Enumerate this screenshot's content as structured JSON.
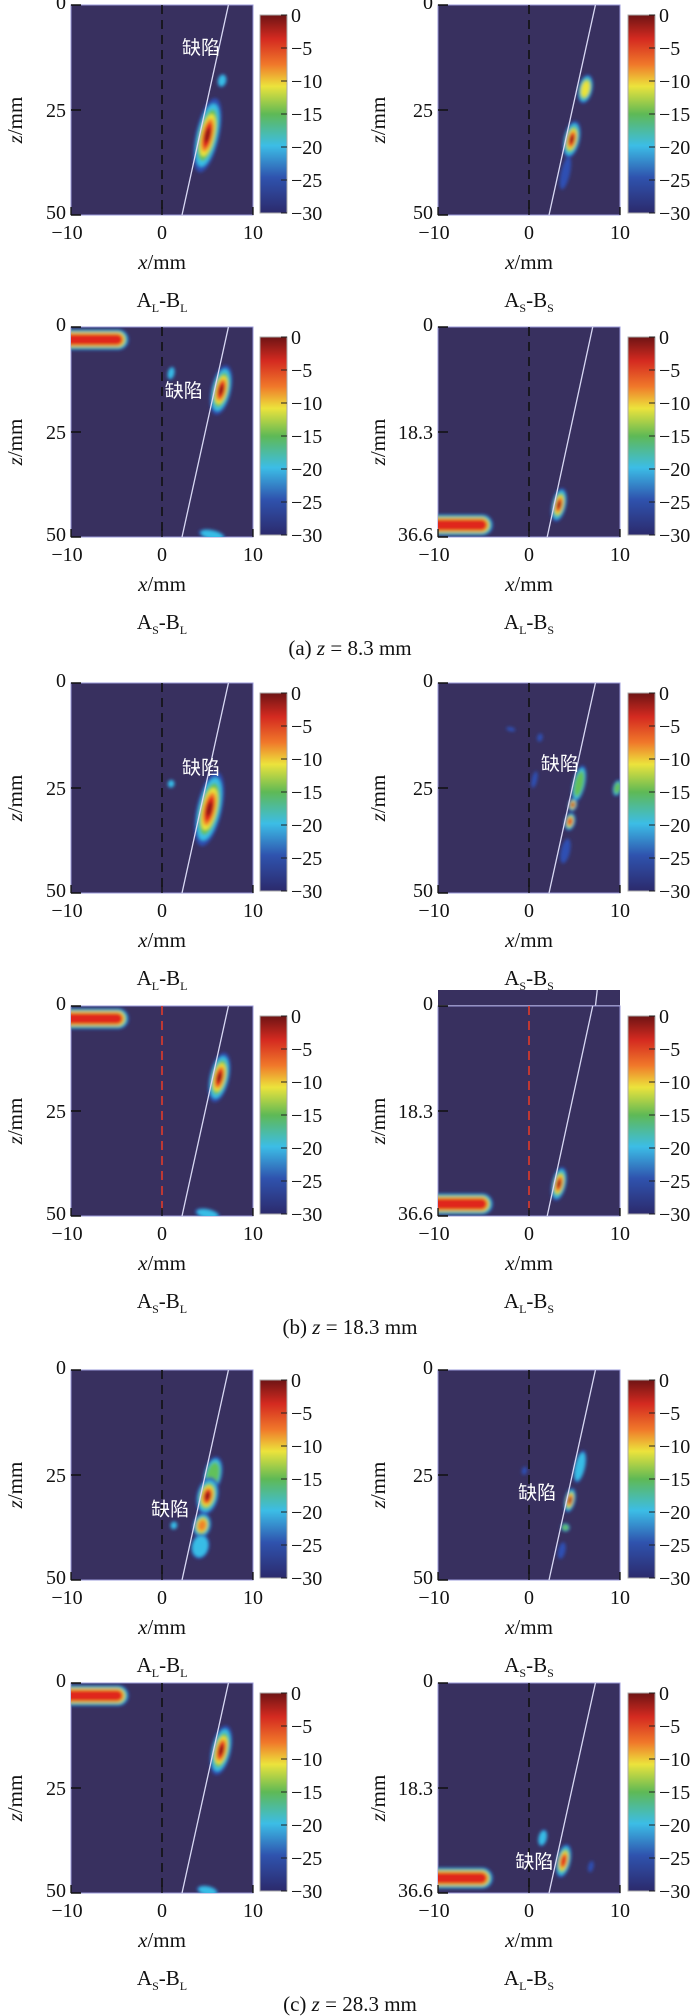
{
  "colors": {
    "background": "#38305f",
    "zero_line_black": "#111111",
    "zero_line_red": "#e03a2a",
    "defect_line": "#d8d8f4"
  },
  "captions": [
    {
      "prefix": "(a) ",
      "var": "z",
      "value": " = 8.3 mm"
    },
    {
      "prefix": "(b) ",
      "var": "z",
      "value": " = 18.3 mm"
    },
    {
      "prefix": "(c) ",
      "var": "z",
      "value": " = 28.3 mm"
    }
  ],
  "colorbar": {
    "ticks": [
      "0",
      "−5",
      "−10",
      "−15",
      "−20",
      "−25",
      "−30"
    ],
    "range": [
      -30,
      0
    ],
    "colormap": "jet"
  },
  "axis": {
    "xlabel_var": "x",
    "xlabel_unit": "/mm",
    "ylabel_var": "z",
    "ylabel_unit": "/mm",
    "xticks": [
      "−10",
      "0",
      "10"
    ],
    "xrange": [
      -10,
      10
    ]
  },
  "annotation_text": "缺陷",
  "chart_data": [
    {
      "type": "heatmap",
      "title": {
        "a": "A",
        "as": "L",
        "b": "-B",
        "bs": "L"
      },
      "zrange": [
        0,
        50
      ],
      "zticks": [
        "0",
        "25",
        "50"
      ],
      "zero_line": "black",
      "defect_line": [
        [
          7.3,
          0
        ],
        [
          2.2,
          50
        ]
      ],
      "annotation": [
        2.2,
        10
      ],
      "stripe": null,
      "blobs": [
        {
          "x": 5,
          "z": 31,
          "rx": 1.3,
          "rz": 9,
          "peak": -1
        },
        {
          "x": 6.6,
          "z": 18,
          "rx": 0.5,
          "rz": 1.6,
          "peak": -20
        }
      ]
    },
    {
      "type": "heatmap",
      "title": {
        "a": "A",
        "as": "S",
        "b": "-B",
        "bs": "S"
      },
      "zrange": [
        0,
        50
      ],
      "zticks": [
        "0",
        "25",
        "50"
      ],
      "zero_line": "black",
      "defect_line": [
        [
          7.3,
          0
        ],
        [
          2.2,
          50
        ]
      ],
      "annotation": null,
      "stripe": null,
      "blobs": [
        {
          "x": 6.2,
          "z": 20,
          "rx": 0.8,
          "rz": 3.5,
          "peak": -10
        },
        {
          "x": 4.7,
          "z": 32,
          "rx": 0.9,
          "rz": 4.5,
          "peak": 0
        },
        {
          "x": 4,
          "z": 40,
          "rx": 0.5,
          "rz": 4,
          "peak": -22
        },
        {
          "x": 0.3,
          "z": 30,
          "rx": 0.3,
          "rz": 0.6,
          "peak": -27
        }
      ]
    },
    {
      "type": "heatmap",
      "title": {
        "a": "A",
        "as": "S",
        "b": "-B",
        "bs": "L"
      },
      "zrange": [
        0,
        50
      ],
      "zticks": [
        "0",
        "25",
        "50"
      ],
      "zero_line": "black",
      "defect_line": [
        [
          7.3,
          0
        ],
        [
          2.2,
          50
        ]
      ],
      "annotation": [
        0.3,
        15
      ],
      "stripe": {
        "x0": -10,
        "x1": -4.3,
        "z": 3,
        "peak": -2
      },
      "blobs": [
        {
          "x": 6.5,
          "z": 15,
          "rx": 1.1,
          "rz": 6,
          "peak": -1
        },
        {
          "x": 1,
          "z": 11,
          "rx": 0.4,
          "rz": 1.6,
          "peak": -18
        },
        {
          "x": 5.5,
          "z": 49.5,
          "rx": 1.5,
          "rz": 1.2,
          "peak": -17
        }
      ]
    },
    {
      "type": "heatmap",
      "title": {
        "a": "A",
        "as": "L",
        "b": "-B",
        "bs": "S"
      },
      "zrange": [
        0,
        36.6
      ],
      "zticks": [
        "0",
        "18.3",
        "36.6"
      ],
      "zero_line": "black",
      "defect_line": [
        [
          7,
          0
        ],
        [
          2,
          36.6
        ]
      ],
      "annotation": null,
      "stripe": {
        "x0": -10,
        "x1": -4.6,
        "z": 34.5,
        "peak": -3
      },
      "blobs": [
        {
          "x": 3.3,
          "z": 31,
          "rx": 0.8,
          "rz": 3,
          "peak": -1
        }
      ]
    },
    {
      "type": "heatmap",
      "title": {
        "a": "A",
        "as": "L",
        "b": "-B",
        "bs": "L"
      },
      "zrange": [
        0,
        50
      ],
      "zticks": [
        "0",
        "25",
        "50"
      ],
      "zero_line": "black",
      "defect_line": [
        [
          7.3,
          0
        ],
        [
          2.2,
          50
        ]
      ],
      "annotation": [
        2.2,
        20
      ],
      "stripe": null,
      "blobs": [
        {
          "x": 5.2,
          "z": 30,
          "rx": 1.4,
          "rz": 9,
          "peak": -1
        },
        {
          "x": 1,
          "z": 24,
          "rx": 0.4,
          "rz": 1,
          "peak": -20
        },
        {
          "x": 2,
          "z": 27.5,
          "rx": 0.3,
          "rz": 0.5,
          "peak": -27
        }
      ]
    },
    {
      "type": "heatmap",
      "title": {
        "a": "A",
        "as": "S",
        "b": "-B",
        "bs": "S"
      },
      "zrange": [
        0,
        50
      ],
      "zticks": [
        "0",
        "25",
        "50"
      ],
      "zero_line": "black",
      "defect_line": [
        [
          7.3,
          0
        ],
        [
          2.2,
          50
        ]
      ],
      "annotation": [
        1.3,
        19
      ],
      "stripe": null,
      "blobs": [
        {
          "x": 5.5,
          "z": 24,
          "rx": 0.7,
          "rz": 4.5,
          "peak": -14
        },
        {
          "x": 4.8,
          "z": 29,
          "rx": 0.5,
          "rz": 1.6,
          "peak": 0
        },
        {
          "x": 4.5,
          "z": 33,
          "rx": 0.6,
          "rz": 2.2,
          "peak": -3
        },
        {
          "x": 4,
          "z": 40,
          "rx": 0.5,
          "rz": 3,
          "peak": -22
        },
        {
          "x": 9.7,
          "z": 25,
          "rx": 0.5,
          "rz": 2,
          "peak": -14
        },
        {
          "x": 0.6,
          "z": 23,
          "rx": 0.3,
          "rz": 2,
          "peak": -22
        },
        {
          "x": -2,
          "z": 11,
          "rx": 0.5,
          "rz": 0.5,
          "peak": -25
        },
        {
          "x": 1.2,
          "z": 13,
          "rx": 0.3,
          "rz": 1,
          "peak": -25
        }
      ]
    },
    {
      "type": "heatmap",
      "title": {
        "a": "A",
        "as": "S",
        "b": "-B",
        "bs": "L"
      },
      "zrange": [
        0,
        50
      ],
      "zticks": [
        "0",
        "25",
        "50"
      ],
      "zero_line": "red",
      "defect_line": [
        [
          7.3,
          0
        ],
        [
          2.2,
          50
        ]
      ],
      "annotation": null,
      "stripe": {
        "x0": -10,
        "x1": -4.3,
        "z": 3,
        "peak": -2
      },
      "blobs": [
        {
          "x": 6.3,
          "z": 17,
          "rx": 1.1,
          "rz": 6,
          "peak": -1
        },
        {
          "x": 5,
          "z": 49.5,
          "rx": 1.4,
          "rz": 1.2,
          "peak": -20
        }
      ]
    },
    {
      "type": "heatmap",
      "title": {
        "a": "A",
        "as": "L",
        "b": "-B",
        "bs": "S"
      },
      "zrange": [
        0,
        36.6
      ],
      "zticks": [
        "0",
        "18.3",
        "36.6"
      ],
      "zero_line": "red",
      "defect_line": [
        [
          7,
          0
        ],
        [
          2,
          36.6
        ]
      ],
      "annotation": null,
      "stripe": {
        "x0": -10,
        "x1": -4.6,
        "z": 34.5,
        "peak": -3
      },
      "blobs": [
        {
          "x": 3.3,
          "z": 31,
          "rx": 0.8,
          "rz": 3,
          "peak": -1
        }
      ]
    },
    {
      "type": "heatmap",
      "title": {
        "a": "A",
        "as": "L",
        "b": "-B",
        "bs": "L"
      },
      "zrange": [
        0,
        50
      ],
      "zticks": [
        "0",
        "25",
        "50"
      ],
      "zero_line": "black",
      "defect_line": [
        [
          7.3,
          0
        ],
        [
          2.2,
          50
        ]
      ],
      "annotation": [
        -1.2,
        33
      ],
      "stripe": null,
      "blobs": [
        {
          "x": 5.6,
          "z": 25,
          "rx": 1,
          "rz": 4.5,
          "peak": -14
        },
        {
          "x": 5,
          "z": 30,
          "rx": 1.2,
          "rz": 4.5,
          "peak": -1
        },
        {
          "x": 4.4,
          "z": 37,
          "rx": 1,
          "rz": 3,
          "peak": -5
        },
        {
          "x": 4.2,
          "z": 42,
          "rx": 1,
          "rz": 3,
          "peak": -20
        },
        {
          "x": 1.3,
          "z": 37,
          "rx": 0.4,
          "rz": 1,
          "peak": -20
        },
        {
          "x": 7.5,
          "z": 40,
          "rx": 0.3,
          "rz": 1,
          "peak": -27
        }
      ]
    },
    {
      "type": "heatmap",
      "title": {
        "a": "A",
        "as": "S",
        "b": "-B",
        "bs": "S"
      },
      "zrange": [
        0,
        50
      ],
      "zticks": [
        "0",
        "25",
        "50"
      ],
      "zero_line": "black",
      "defect_line": [
        [
          7.3,
          0
        ],
        [
          2.2,
          50
        ]
      ],
      "annotation": [
        -1.2,
        29
      ],
      "stripe": null,
      "blobs": [
        {
          "x": 5.6,
          "z": 23,
          "rx": 0.6,
          "rz": 4,
          "peak": -20
        },
        {
          "x": 4.5,
          "z": 31,
          "rx": 0.6,
          "rz": 3,
          "peak": 0
        },
        {
          "x": 4,
          "z": 37.5,
          "rx": 0.5,
          "rz": 1,
          "peak": -12
        },
        {
          "x": 3.6,
          "z": 43,
          "rx": 0.4,
          "rz": 2,
          "peak": -22
        },
        {
          "x": -0.5,
          "z": 24,
          "rx": 0.3,
          "rz": 1,
          "peak": -24
        },
        {
          "x": 6.5,
          "z": 43,
          "rx": 0.3,
          "rz": 1,
          "peak": -26
        }
      ]
    },
    {
      "type": "heatmap",
      "title": {
        "a": "A",
        "as": "S",
        "b": "-B",
        "bs": "L"
      },
      "zrange": [
        0,
        50
      ],
      "zticks": [
        "0",
        "25",
        "50"
      ],
      "zero_line": "black",
      "defect_line": [
        [
          7.3,
          0
        ],
        [
          2.2,
          50
        ]
      ],
      "annotation": null,
      "stripe": {
        "x0": -10,
        "x1": -4.3,
        "z": 3,
        "peak": -2
      },
      "blobs": [
        {
          "x": 6.5,
          "z": 16,
          "rx": 1.1,
          "rz": 6,
          "peak": -1
        },
        {
          "x": 5,
          "z": 49.5,
          "rx": 1.2,
          "rz": 1.2,
          "peak": -20
        }
      ]
    },
    {
      "type": "heatmap",
      "title": {
        "a": "A",
        "as": "L",
        "b": "-B",
        "bs": "S"
      },
      "zrange": [
        0,
        36.6
      ],
      "zticks": [
        "0",
        "18.3",
        "36.6"
      ],
      "zero_line": "black",
      "defect_line": [
        [
          7.3,
          0
        ],
        [
          2.2,
          36.6
        ]
      ],
      "annotation": [
        -1.5,
        31
      ],
      "stripe": {
        "x0": -10,
        "x1": -4.6,
        "z": 34,
        "peak": -3
      },
      "blobs": [
        {
          "x": 3.8,
          "z": 31,
          "rx": 0.8,
          "rz": 3,
          "peak": -3
        },
        {
          "x": 1.5,
          "z": 27,
          "rx": 0.5,
          "rz": 1.5,
          "peak": -20
        },
        {
          "x": 6.8,
          "z": 32,
          "rx": 0.3,
          "rz": 1,
          "peak": -25
        }
      ]
    }
  ]
}
